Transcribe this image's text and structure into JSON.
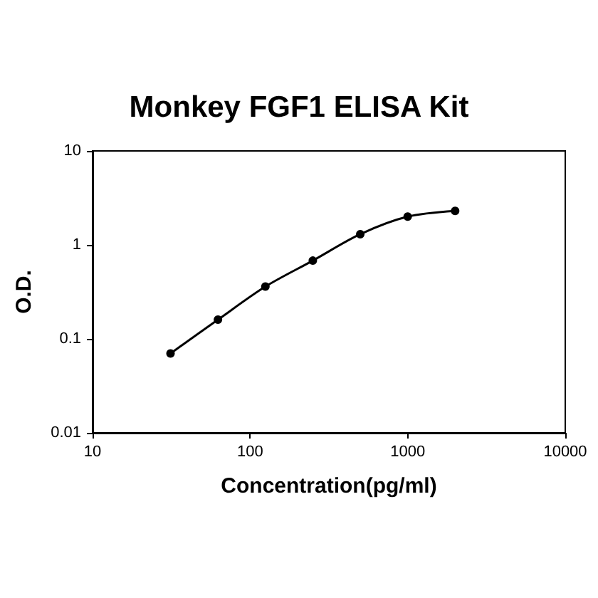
{
  "chart_data": {
    "type": "line",
    "title": "Monkey FGF1 ELISA Kit",
    "xlabel": "Concentration(pg/ml)",
    "ylabel": "O.D.",
    "x": [
      31.25,
      62.5,
      125,
      250,
      500,
      1000,
      2000
    ],
    "series": [
      {
        "color": "#000000",
        "values": [
          0.07,
          0.16,
          0.36,
          0.68,
          1.3,
          2.0,
          2.3
        ]
      }
    ],
    "xlim": [
      10,
      10000
    ],
    "xticks": [
      10,
      100,
      1000,
      10000
    ],
    "ylim": [
      0.01,
      10
    ],
    "yticks": [
      0.01,
      0.1,
      1,
      10
    ],
    "log": "xy",
    "grid": false,
    "marker": "circle",
    "line_style": "solid"
  }
}
